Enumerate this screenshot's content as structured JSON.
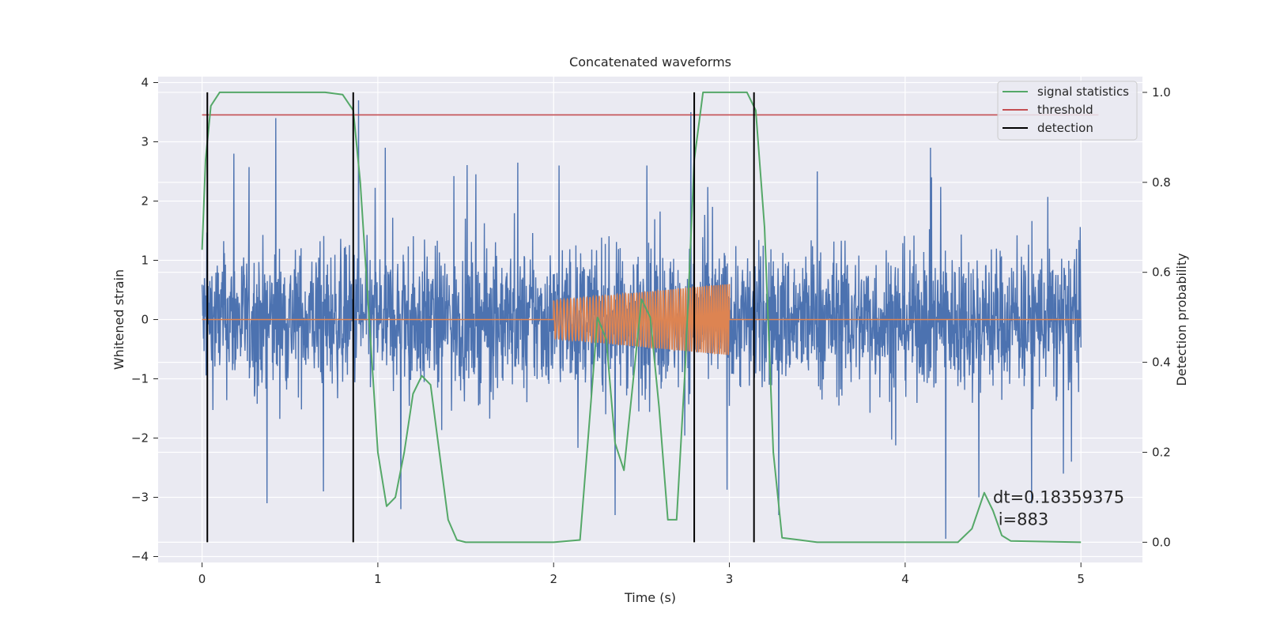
{
  "chart_data": {
    "type": "line",
    "title": "Concatenated waveforms",
    "xlabel": "Time (s)",
    "ylabel": "Whitened strain",
    "y2label": "Detection probability",
    "xlim": [
      -0.25,
      5.35
    ],
    "ylim": [
      -4.1,
      4.1
    ],
    "y2lim": [
      -0.045,
      1.035
    ],
    "xticks": [
      0,
      1,
      2,
      3,
      4,
      5
    ],
    "yticks": [
      -4,
      -3,
      -2,
      -1,
      0,
      1,
      2,
      3,
      4
    ],
    "y2ticks": [
      0.0,
      0.2,
      0.4,
      0.6,
      0.8,
      1.0
    ],
    "xtick_labels": [
      "0",
      "1",
      "2",
      "3",
      "4",
      "5"
    ],
    "ytick_labels": [
      "−4",
      "−3",
      "−2",
      "−1",
      "0",
      "1",
      "2",
      "3",
      "4"
    ],
    "y2tick_labels": [
      "0.0",
      "0.2",
      "0.4",
      "0.6",
      "0.8",
      "1.0"
    ],
    "grid": true,
    "legend_position": "top-right",
    "colors": {
      "noise": "#4c72b0",
      "injection": "#dd8452",
      "signal_statistics": "#55a868",
      "threshold": "#c44e52",
      "detection": "#000000",
      "background": "#eaeaf2",
      "grid": "#ffffff"
    },
    "noise": {
      "t_start": 0,
      "t_end": 5,
      "typical_range": [
        -1.6,
        1.6
      ],
      "spikes": [
        [
          0.42,
          3.4
        ],
        [
          0.89,
          3.7
        ],
        [
          0.18,
          2.8
        ],
        [
          2.03,
          2.6
        ],
        [
          2.53,
          2.6
        ],
        [
          2.78,
          3.5
        ],
        [
          3.5,
          2.5
        ],
        [
          4.15,
          2.4
        ],
        [
          4.72,
          2.3
        ],
        [
          0.37,
          -3.1
        ],
        [
          0.69,
          -2.9
        ],
        [
          1.13,
          -3.2
        ],
        [
          2.35,
          -3.3
        ],
        [
          3.28,
          -3.3
        ],
        [
          4.23,
          -3.7
        ],
        [
          4.42,
          -3.0
        ],
        [
          4.72,
          -3.1
        ],
        [
          4.9,
          -2.6
        ]
      ]
    },
    "injection": {
      "t_start": 2.0,
      "t_end": 3.0,
      "amplitude_start": 0.32,
      "amplitude_end": 0.6,
      "frequency_start_hz": 50,
      "frequency_end_hz": 80
    },
    "threshold_value": 0.95,
    "detections": [
      0.03,
      0.86,
      2.8,
      3.14
    ],
    "signal_statistics": [
      [
        0.0,
        0.65
      ],
      [
        0.02,
        0.85
      ],
      [
        0.05,
        0.97
      ],
      [
        0.1,
        1.0
      ],
      [
        0.7,
        1.0
      ],
      [
        0.8,
        0.995
      ],
      [
        0.86,
        0.96
      ],
      [
        0.9,
        0.8
      ],
      [
        0.95,
        0.5
      ],
      [
        1.0,
        0.2
      ],
      [
        1.05,
        0.08
      ],
      [
        1.1,
        0.1
      ],
      [
        1.15,
        0.2
      ],
      [
        1.2,
        0.33
      ],
      [
        1.25,
        0.37
      ],
      [
        1.3,
        0.35
      ],
      [
        1.35,
        0.2
      ],
      [
        1.4,
        0.05
      ],
      [
        1.45,
        0.005
      ],
      [
        1.5,
        0.0
      ],
      [
        2.0,
        0.0
      ],
      [
        2.15,
        0.005
      ],
      [
        2.2,
        0.25
      ],
      [
        2.25,
        0.5
      ],
      [
        2.3,
        0.45
      ],
      [
        2.35,
        0.22
      ],
      [
        2.4,
        0.16
      ],
      [
        2.45,
        0.35
      ],
      [
        2.5,
        0.54
      ],
      [
        2.55,
        0.5
      ],
      [
        2.6,
        0.3
      ],
      [
        2.65,
        0.05
      ],
      [
        2.7,
        0.05
      ],
      [
        2.75,
        0.4
      ],
      [
        2.8,
        0.85
      ],
      [
        2.85,
        1.0
      ],
      [
        3.1,
        1.0
      ],
      [
        3.15,
        0.96
      ],
      [
        3.2,
        0.7
      ],
      [
        3.25,
        0.2
      ],
      [
        3.3,
        0.01
      ],
      [
        3.4,
        0.005
      ],
      [
        3.5,
        0.0
      ],
      [
        4.3,
        0.0
      ],
      [
        4.38,
        0.03
      ],
      [
        4.45,
        0.11
      ],
      [
        4.5,
        0.07
      ],
      [
        4.55,
        0.015
      ],
      [
        4.6,
        0.003
      ],
      [
        5.0,
        0.0
      ]
    ],
    "legend": [
      "signal statistics",
      "threshold",
      "detection"
    ],
    "annotation": [
      "dt=0.18359375",
      " i=883"
    ]
  }
}
